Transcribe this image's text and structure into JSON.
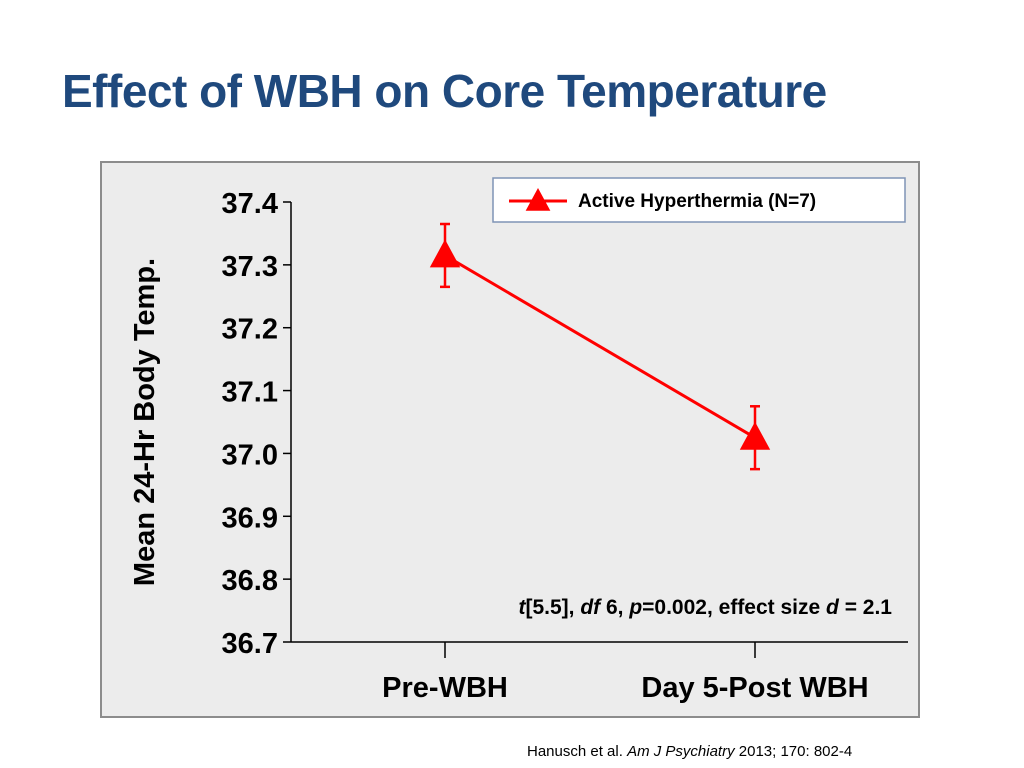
{
  "slide": {
    "title": "Effect of WBH on Core Temperature",
    "citation": {
      "authors": "Hanusch et al.",
      "journal": "Am J Psychiatry",
      "details": "2013; 170: 802-4"
    }
  },
  "chart_data": {
    "type": "line",
    "categories": [
      "Pre-WBH",
      "Day 5-Post WBH"
    ],
    "series": [
      {
        "name": "Active Hyperthermia (N=7)",
        "values": [
          37.315,
          37.025
        ],
        "error": [
          0.05,
          0.05
        ],
        "color": "#ff0000",
        "marker": "triangle"
      }
    ],
    "ylabel": "Mean 24-Hr Body Temp.",
    "xlabel": "",
    "ylim": [
      36.7,
      37.4
    ],
    "yticks": [
      37.4,
      37.3,
      37.2,
      37.1,
      37.0,
      36.9,
      36.8,
      36.7
    ],
    "ytick_labels": [
      "37.4",
      "37.3",
      "37.2",
      "37.1",
      "37.0",
      "36.9",
      "36.8",
      "36.7"
    ],
    "grid": false,
    "legend": "top-right",
    "annotation": {
      "parts": [
        {
          "text": "t",
          "italic": true
        },
        {
          "text": "[5.5], ",
          "italic": false
        },
        {
          "text": "df",
          "italic": true
        },
        {
          "text": " 6, ",
          "italic": false
        },
        {
          "text": "p",
          "italic": true
        },
        {
          "text": "=0.002, effect size ",
          "italic": false
        },
        {
          "text": "d",
          "italic": true
        },
        {
          "text": " = 2.1",
          "italic": false
        }
      ]
    }
  }
}
